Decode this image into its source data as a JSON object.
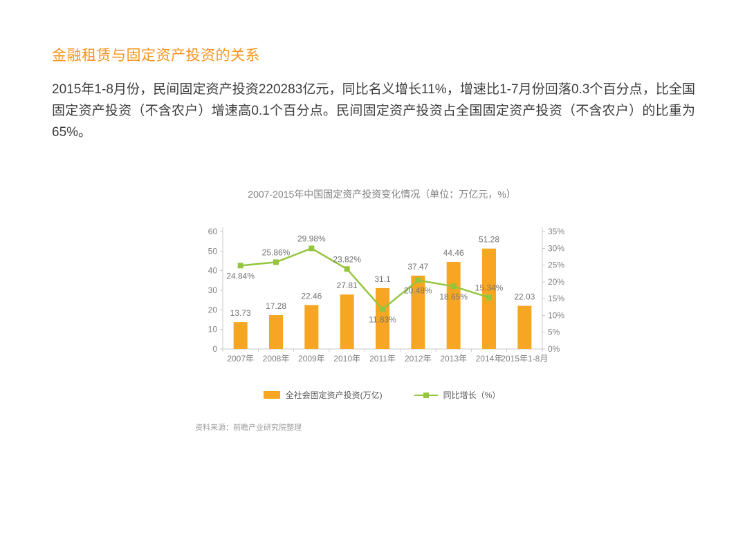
{
  "theme": {
    "accent": "#f7941d",
    "bar_color": "#f6a623",
    "line_color": "#94c53d",
    "axis_color": "#c9c9c9",
    "label_color": "#737373"
  },
  "page": {
    "heading": "金融租赁与固定资产投资的关系",
    "paragraph": "2015年1-8月份，民间固定资产投资220283亿元，同比名义增长11%，增速比1-7月份回落0.3个百分点，比全国固定资产投资（不含农户）增速高0.1个百分点。民间固定资产投资占全国固定资产投资（不含农户）的比重为65%。",
    "source": "资料来源：前瞻产业研究院整理"
  },
  "chart_data": {
    "type": "bar",
    "subtype": "bar+line combo, dual y-axes",
    "title": "2007-2015年中国固定资产投资变化情况（单位：万亿元，%）",
    "categories": [
      "2007年",
      "2008年",
      "2009年",
      "2010年",
      "2011年",
      "2012年",
      "2013年",
      "2014年",
      "2015年1-8月"
    ],
    "series": [
      {
        "name": "全社会固定资产投资(万亿)",
        "type": "bar",
        "axis": "left",
        "color": "#f6a623",
        "values": [
          13.73,
          17.28,
          22.46,
          27.81,
          31.1,
          37.47,
          44.46,
          51.28,
          22.03
        ],
        "value_labels": [
          "13.73",
          "17.28",
          "22.46",
          "27.81",
          "31.1",
          "37.47",
          "44.46",
          "51.28",
          "22.03"
        ]
      },
      {
        "name": "同比增长（%）",
        "type": "line",
        "axis": "right",
        "color": "#94c53d",
        "values": [
          24.84,
          25.86,
          29.98,
          23.82,
          11.83,
          20.48,
          18.65,
          15.34
        ],
        "value_labels": [
          "24.84%",
          "25.86%",
          "29.98%",
          "23.82%",
          "11.83%",
          "20.48%",
          "18.65%",
          "15.34%"
        ],
        "label_positions": [
          "below",
          "above",
          "above",
          "above",
          "below",
          "below",
          "below",
          "above"
        ]
      }
    ],
    "left_axis": {
      "min": 0,
      "max": 60,
      "step": 10,
      "ticks": [
        "0",
        "10",
        "20",
        "30",
        "40",
        "50",
        "60"
      ]
    },
    "right_axis": {
      "min": 0,
      "max": 35,
      "step": 5,
      "ticks": [
        "0%",
        "5%",
        "10%",
        "15%",
        "20%",
        "25%",
        "30%",
        "35%"
      ]
    },
    "grid": false,
    "legend_position": "bottom"
  }
}
